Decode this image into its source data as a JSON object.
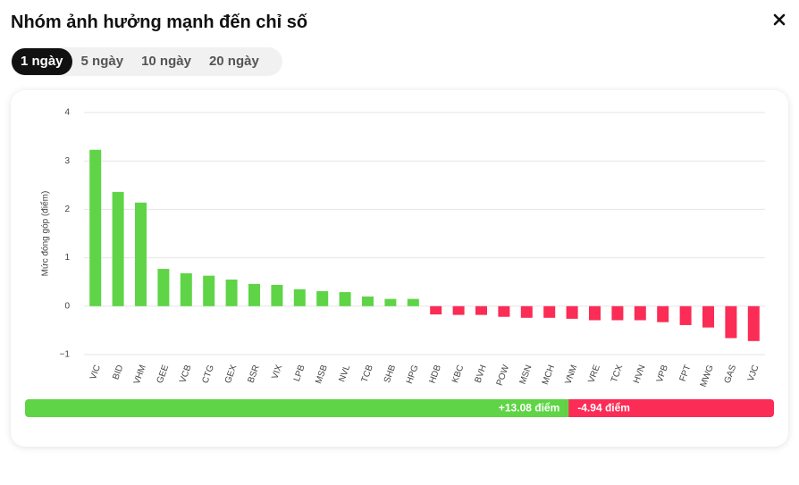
{
  "header": {
    "title": "Nhóm ảnh hưởng mạnh đến chỉ số"
  },
  "tabs": {
    "items": [
      "1 ngày",
      "5 ngày",
      "10 ngày",
      "20 ngày"
    ],
    "active": 0
  },
  "chart_data": {
    "type": "bar",
    "y_label": "Mức đóng góp (điểm)",
    "categories": [
      "VIC",
      "BID",
      "VHM",
      "GEE",
      "VCB",
      "CTG",
      "GEX",
      "BSR",
      "VIX",
      "LPB",
      "MSB",
      "NVL",
      "TCB",
      "SHB",
      "HPG",
      "HDB",
      "KBC",
      "BVH",
      "POW",
      "MSN",
      "MCH",
      "VNM",
      "VRE",
      "TCX",
      "HVN",
      "VPB",
      "FPT",
      "MWG",
      "GAS",
      "VJC"
    ],
    "values": [
      3.23,
      2.36,
      2.14,
      0.77,
      0.68,
      0.63,
      0.55,
      0.46,
      0.44,
      0.35,
      0.31,
      0.29,
      0.2,
      0.15,
      0.15,
      -0.17,
      -0.18,
      -0.18,
      -0.22,
      -0.24,
      -0.24,
      -0.26,
      -0.29,
      -0.29,
      -0.29,
      -0.33,
      -0.39,
      -0.44,
      -0.66,
      -0.72
    ],
    "positive_color": "#5fd446",
    "negative_color": "#fb2c55",
    "ylim": [
      -1,
      4
    ],
    "yticks": [
      {
        "value": -1,
        "label": "−1"
      },
      0,
      1,
      2,
      3,
      4
    ],
    "grid": true,
    "summary": {
      "values": [
        13.08,
        -4.94
      ],
      "value_labels": [
        "+13.08 điểm",
        "-4.94 điểm"
      ]
    }
  }
}
